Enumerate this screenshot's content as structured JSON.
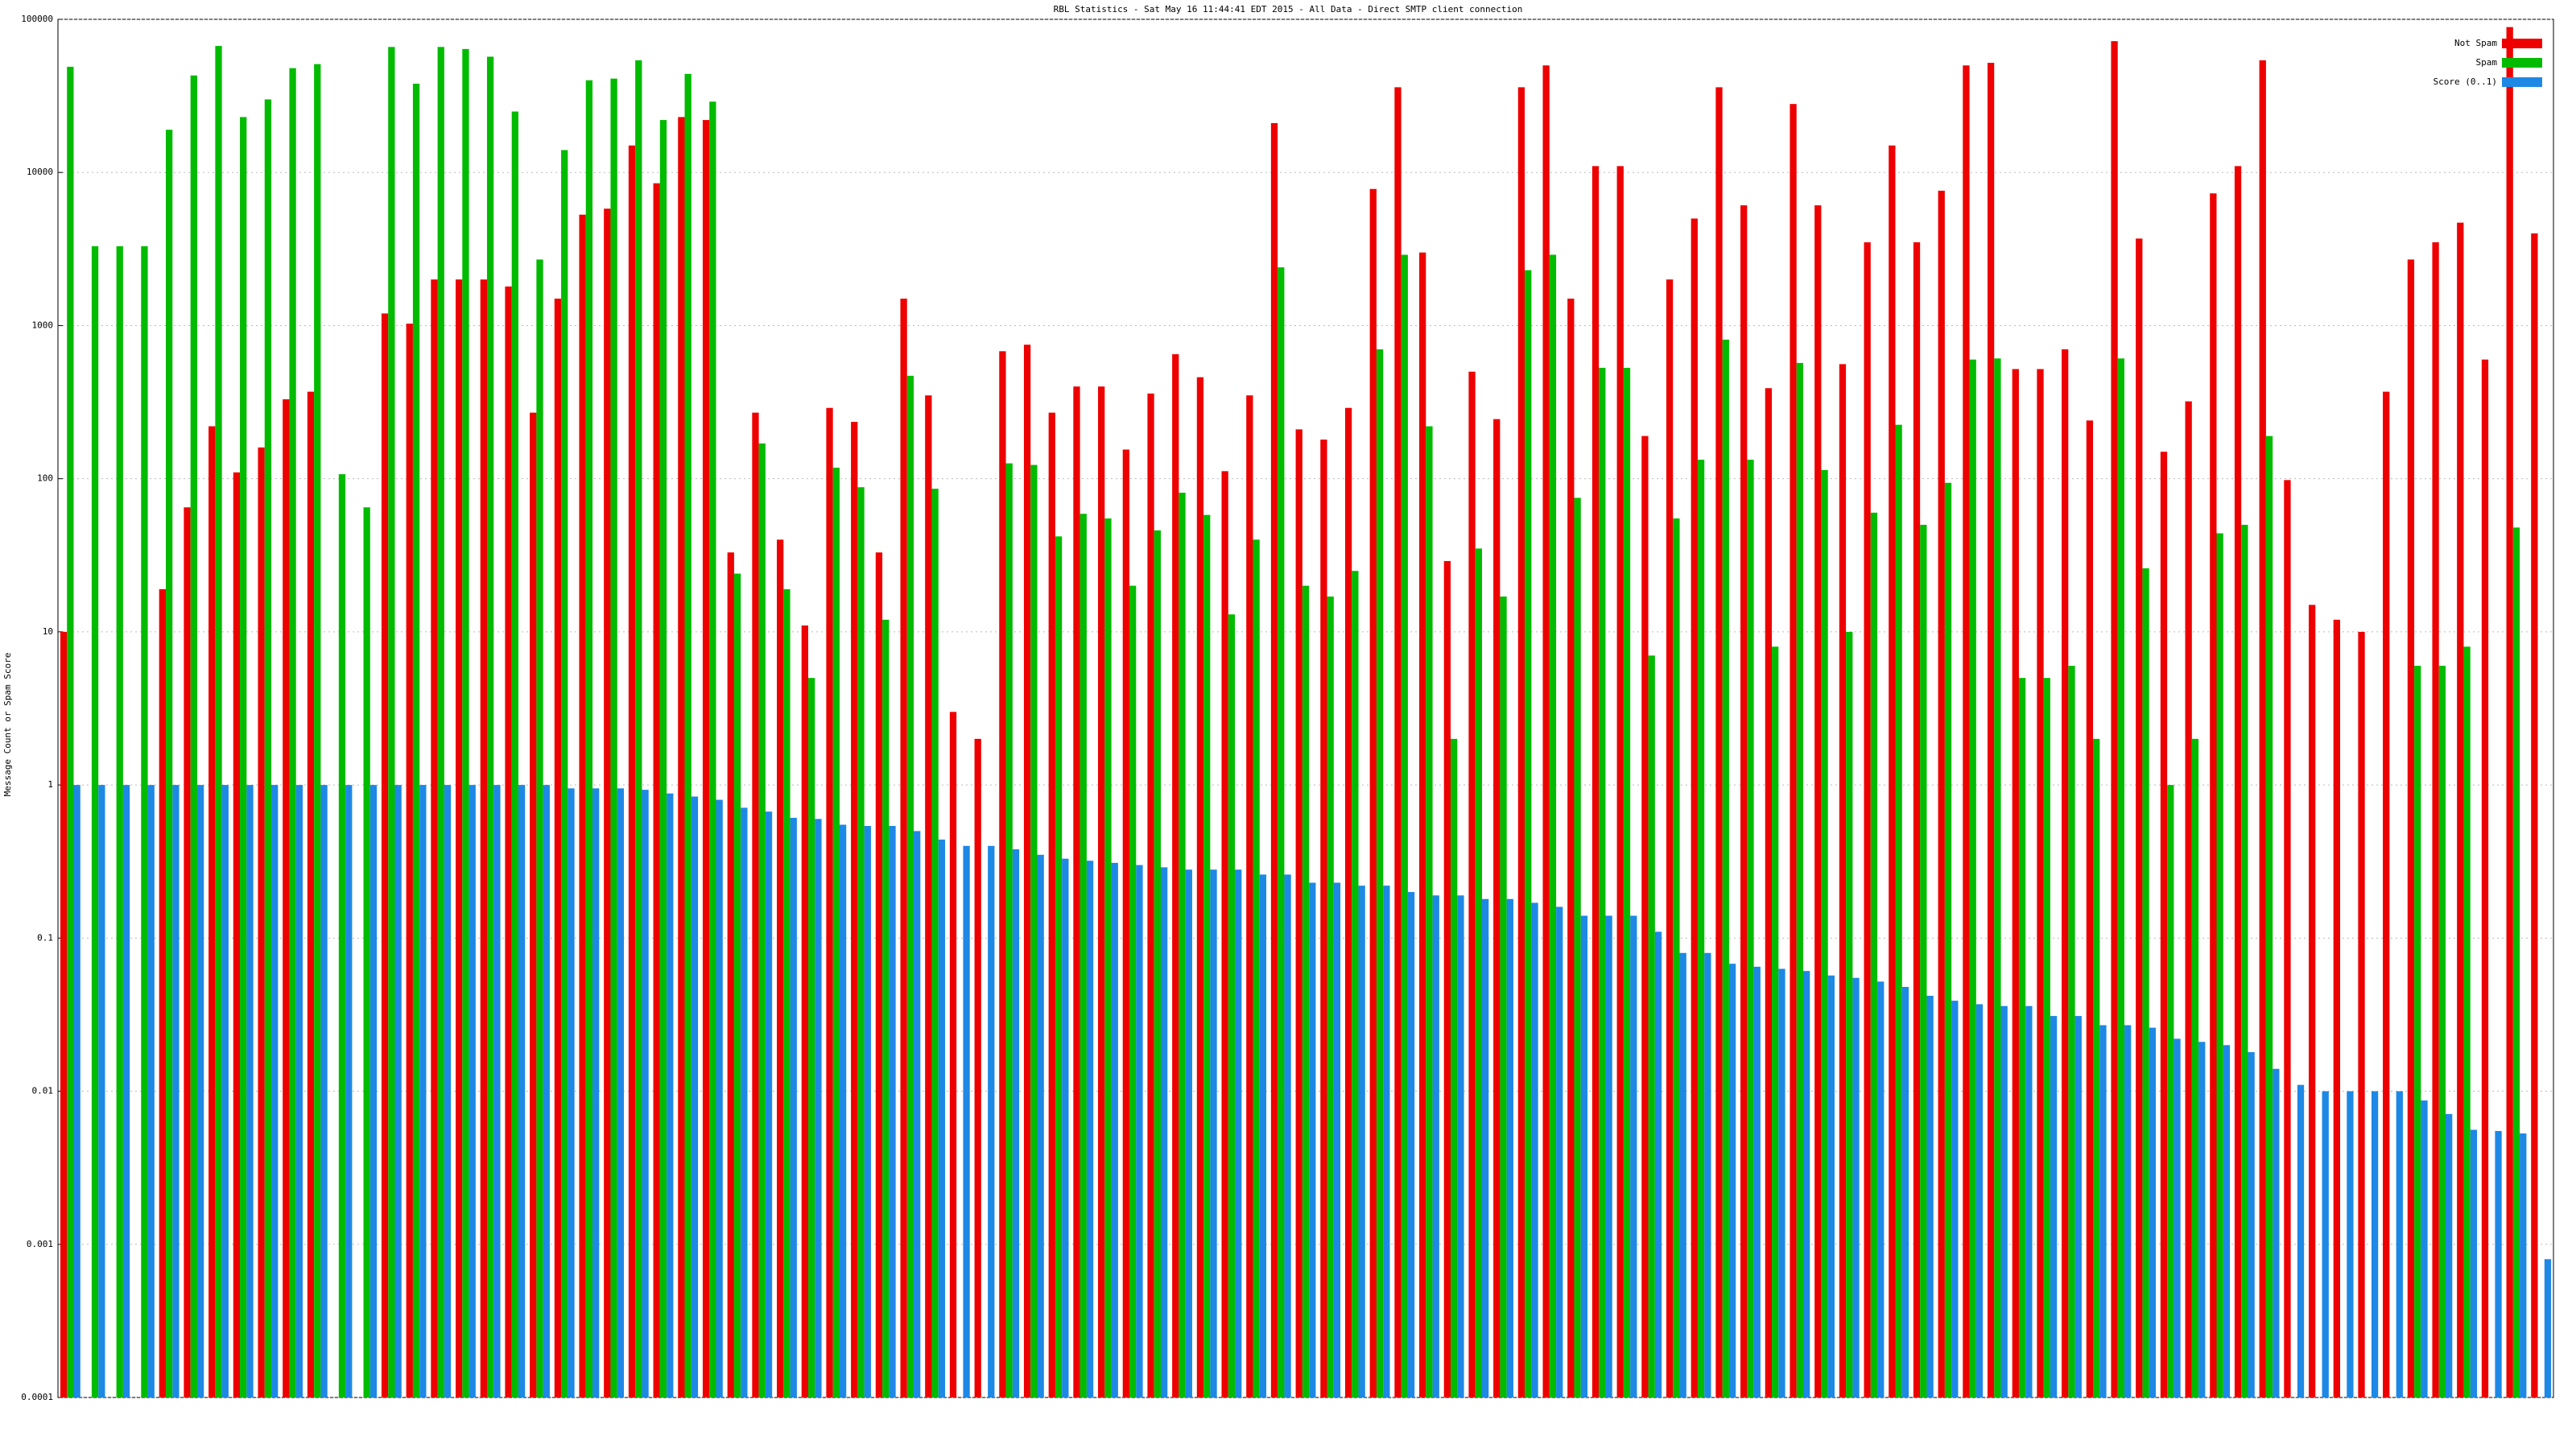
{
  "chart_data": {
    "type": "bar",
    "log_scale": true,
    "grid": true,
    "legend": "upper right",
    "title": "RBL Statistics - Sat May 16 11:44:41 EDT 2015 - All Data - Direct SMTP client connection",
    "y_label": "Message Count or Spam Score",
    "categories": [
      null,
      null,
      null,
      null,
      null,
      null,
      null,
      null,
      null,
      null,
      null,
      null,
      null,
      null,
      null,
      null,
      null,
      null,
      null,
      null,
      null,
      null,
      null,
      null,
      null,
      null,
      null,
      null,
      null,
      null,
      null,
      null,
      null,
      null,
      null,
      null,
      null,
      null,
      null,
      null,
      null,
      null,
      null,
      null,
      null,
      null,
      null,
      null,
      null,
      null,
      null,
      null,
      null,
      null,
      null,
      null,
      null,
      null,
      null,
      null,
      null,
      null,
      null,
      null,
      null,
      null,
      null,
      null,
      null,
      null,
      null,
      null,
      null,
      null,
      null,
      null,
      null,
      null,
      null,
      null,
      null,
      null,
      null,
      null,
      null,
      null,
      null,
      null,
      null,
      null,
      null,
      null,
      null,
      null,
      null,
      null,
      null,
      null,
      null,
      null,
      null
    ],
    "ylim": [
      0.0001,
      100000
    ],
    "yticks": [
      0.0001,
      0.001,
      0.01,
      0.1,
      1,
      10,
      100,
      1000,
      10000,
      100000
    ],
    "series": [
      {
        "name": "Not Spam",
        "color": "#ee0000",
        "values": [
          10,
          null,
          null,
          null,
          19,
          65,
          220,
          110,
          160,
          330,
          370,
          null,
          null,
          1200,
          1030,
          2000,
          2000,
          2000,
          1800,
          270,
          1500,
          5300,
          5800,
          15000,
          8500,
          23000,
          22000,
          33,
          270,
          40,
          11,
          290,
          235,
          33,
          1500,
          350,
          3,
          2,
          680,
          750,
          270,
          400,
          400,
          155,
          360,
          650,
          460,
          112,
          350,
          21000,
          210,
          180,
          290,
          7800,
          36000,
          3000,
          29,
          500,
          245,
          36000,
          50000,
          1500,
          11000,
          11000,
          190,
          2000,
          5000,
          36000,
          6100,
          390,
          28000,
          6100,
          560,
          3500,
          15000,
          3500,
          7600,
          50000,
          52000,
          520,
          520,
          700,
          240,
          72000,
          3700,
          150,
          320,
          7300,
          11000,
          54000,
          98,
          15,
          12,
          10,
          370,
          2700,
          3500,
          4700,
          600,
          89000,
          4000
        ]
      },
      {
        "name": "Spam",
        "color": "#00bb00",
        "values": [
          49000,
          3300,
          3300,
          3300,
          19000,
          43000,
          67000,
          23000,
          30000,
          48000,
          51000,
          107,
          65,
          66000,
          38000,
          66000,
          64000,
          57000,
          25000,
          2700,
          14000,
          40000,
          41000,
          54000,
          22000,
          44000,
          29000,
          24,
          170,
          19,
          5,
          118,
          88,
          12,
          470,
          86,
          null,
          null,
          126,
          123,
          42,
          59,
          55,
          20,
          46,
          81,
          58,
          13,
          40,
          2400,
          20,
          17,
          25,
          700,
          2900,
          220,
          2,
          35,
          17,
          2300,
          2900,
          75,
          530,
          530,
          7,
          55,
          133,
          810,
          133,
          8,
          570,
          114,
          10,
          60,
          225,
          50,
          94,
          600,
          610,
          5,
          5,
          6,
          2,
          610,
          26,
          1,
          2,
          44,
          50,
          190,
          null,
          null,
          null,
          null,
          null,
          6,
          6,
          8,
          null,
          48,
          null
        ]
      },
      {
        "name": "Score (0..1)",
        "color": "#1e88e5",
        "values": [
          1,
          1,
          1,
          1,
          1,
          1,
          1,
          1,
          1,
          1,
          1,
          1,
          1,
          1,
          1,
          1,
          1,
          1,
          1,
          1,
          0.95,
          0.95,
          0.95,
          0.93,
          0.88,
          0.84,
          0.8,
          0.71,
          0.67,
          0.61,
          0.6,
          0.55,
          0.54,
          0.54,
          0.5,
          0.44,
          0.4,
          0.4,
          0.38,
          0.35,
          0.33,
          0.32,
          0.31,
          0.3,
          0.29,
          0.28,
          0.28,
          0.28,
          0.26,
          0.26,
          0.23,
          0.23,
          0.22,
          0.22,
          0.2,
          0.19,
          0.19,
          0.18,
          0.18,
          0.17,
          0.16,
          0.14,
          0.14,
          0.14,
          0.11,
          0.08,
          0.08,
          0.068,
          0.065,
          0.063,
          0.061,
          0.057,
          0.055,
          0.052,
          0.048,
          0.042,
          0.039,
          0.037,
          0.036,
          0.036,
          0.031,
          0.031,
          0.027,
          0.027,
          0.026,
          0.022,
          0.021,
          0.02,
          0.018,
          0.014,
          0.011,
          0.01,
          0.01,
          0.01,
          0.01,
          0.0087,
          0.0071,
          0.0056,
          0.0055,
          0.0053,
          0.0008
        ]
      }
    ]
  }
}
